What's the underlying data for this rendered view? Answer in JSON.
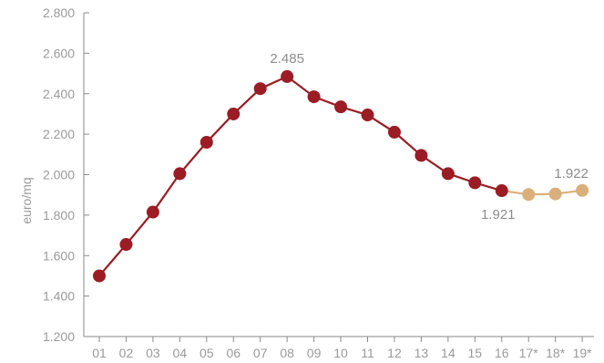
{
  "chart_data": {
    "type": "line",
    "categories": [
      "01",
      "02",
      "03",
      "04",
      "05",
      "06",
      "07",
      "08",
      "09",
      "10",
      "11",
      "12",
      "13",
      "14",
      "15",
      "16",
      "17*",
      "18*",
      "19*"
    ],
    "series": [
      {
        "values": [
          1500,
          1655,
          1815,
          2005,
          2160,
          2300,
          2425,
          2485,
          2385,
          2335,
          2295,
          2210,
          2095,
          2005,
          1960,
          1921,
          null,
          null,
          null
        ],
        "color": "#9b1c24"
      },
      {
        "values": [
          null,
          null,
          null,
          null,
          null,
          null,
          null,
          null,
          null,
          null,
          null,
          null,
          null,
          null,
          null,
          1921,
          1902,
          1905,
          1922
        ],
        "color": "#d9b07c"
      }
    ],
    "ylabel": "euro/mq",
    "xlabel": "",
    "ylim": [
      1200,
      2800
    ],
    "yticks": [
      1200,
      1400,
      1600,
      1800,
      2000,
      2200,
      2400,
      2600,
      2800
    ],
    "ytick_labels": [
      "1.200",
      "1.400",
      "1.600",
      "1.800",
      "2.000",
      "2.200",
      "2.400",
      "2.600",
      "2.800"
    ],
    "annotations": [
      {
        "text": "2.485",
        "category": "08"
      },
      {
        "text": "1.921",
        "category": "16"
      },
      {
        "text": "1.922",
        "category": "19*"
      }
    ],
    "grid": false
  }
}
